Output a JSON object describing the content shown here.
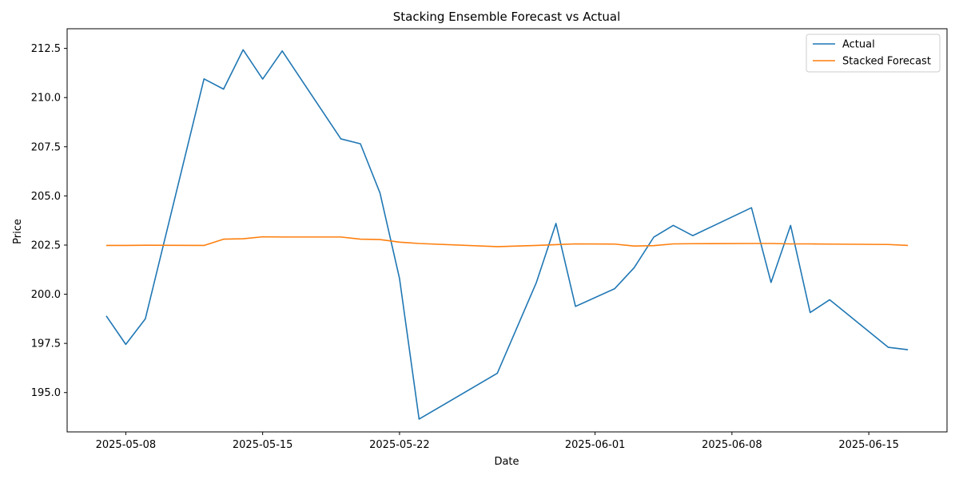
{
  "chart_data": {
    "type": "line",
    "title": "Stacking Ensemble Forecast vs Actual",
    "xlabel": "Date",
    "ylabel": "Price",
    "x_ticks": [
      "2025-05-08",
      "2025-05-15",
      "2025-05-22",
      "2025-06-01",
      "2025-06-08",
      "2025-06-15"
    ],
    "y_ticks": [
      "195.0",
      "197.5",
      "200.0",
      "202.5",
      "205.0",
      "207.5",
      "210.0",
      "212.5"
    ],
    "ylim": [
      193.0,
      213.5
    ],
    "xlim": [
      "2025-05-05",
      "2025-06-19"
    ],
    "grid": false,
    "legend_position": "top-right",
    "series": [
      {
        "name": "Actual",
        "color": "#1f77b4",
        "points": [
          [
            "2025-05-07",
            198.9
          ],
          [
            "2025-05-08",
            197.45
          ],
          [
            "2025-05-09",
            198.75
          ],
          [
            "2025-05-12",
            210.95
          ],
          [
            "2025-05-13",
            210.43
          ],
          [
            "2025-05-14",
            212.43
          ],
          [
            "2025-05-15",
            210.94
          ],
          [
            "2025-05-16",
            212.37
          ],
          [
            "2025-05-19",
            207.9
          ],
          [
            "2025-05-20",
            207.65
          ],
          [
            "2025-05-21",
            205.15
          ],
          [
            "2025-05-22",
            200.8
          ],
          [
            "2025-05-23",
            193.65
          ],
          [
            "2025-05-27",
            195.98
          ],
          [
            "2025-05-29",
            200.6
          ],
          [
            "2025-05-30",
            203.6
          ],
          [
            "2025-05-31",
            199.38
          ],
          [
            "2025-06-02",
            200.28
          ],
          [
            "2025-06-03",
            201.35
          ],
          [
            "2025-06-04",
            202.9
          ],
          [
            "2025-06-05",
            203.5
          ],
          [
            "2025-06-06",
            202.98
          ],
          [
            "2025-06-09",
            204.4
          ],
          [
            "2025-06-10",
            200.6
          ],
          [
            "2025-06-11",
            203.5
          ],
          [
            "2025-06-12",
            199.07
          ],
          [
            "2025-06-13",
            199.72
          ],
          [
            "2025-06-16",
            197.3
          ],
          [
            "2025-06-17",
            197.18
          ]
        ]
      },
      {
        "name": "Stacked Forecast",
        "color": "#ff7f0e",
        "points": [
          [
            "2025-05-07",
            202.48
          ],
          [
            "2025-05-08",
            202.48
          ],
          [
            "2025-05-09",
            202.49
          ],
          [
            "2025-05-12",
            202.48
          ],
          [
            "2025-05-13",
            202.8
          ],
          [
            "2025-05-14",
            202.82
          ],
          [
            "2025-05-15",
            202.92
          ],
          [
            "2025-05-16",
            202.91
          ],
          [
            "2025-05-19",
            202.91
          ],
          [
            "2025-05-20",
            202.8
          ],
          [
            "2025-05-21",
            202.78
          ],
          [
            "2025-05-22",
            202.65
          ],
          [
            "2025-05-23",
            202.58
          ],
          [
            "2025-05-27",
            202.42
          ],
          [
            "2025-05-29",
            202.48
          ],
          [
            "2025-05-30",
            202.52
          ],
          [
            "2025-05-31",
            202.56
          ],
          [
            "2025-06-02",
            202.55
          ],
          [
            "2025-06-03",
            202.45
          ],
          [
            "2025-06-04",
            202.47
          ],
          [
            "2025-06-05",
            202.56
          ],
          [
            "2025-06-06",
            202.57
          ],
          [
            "2025-06-09",
            202.58
          ],
          [
            "2025-06-10",
            202.58
          ],
          [
            "2025-06-11",
            202.56
          ],
          [
            "2025-06-12",
            202.56
          ],
          [
            "2025-06-13",
            202.55
          ],
          [
            "2025-06-16",
            202.53
          ],
          [
            "2025-06-17",
            202.48
          ]
        ]
      }
    ]
  }
}
